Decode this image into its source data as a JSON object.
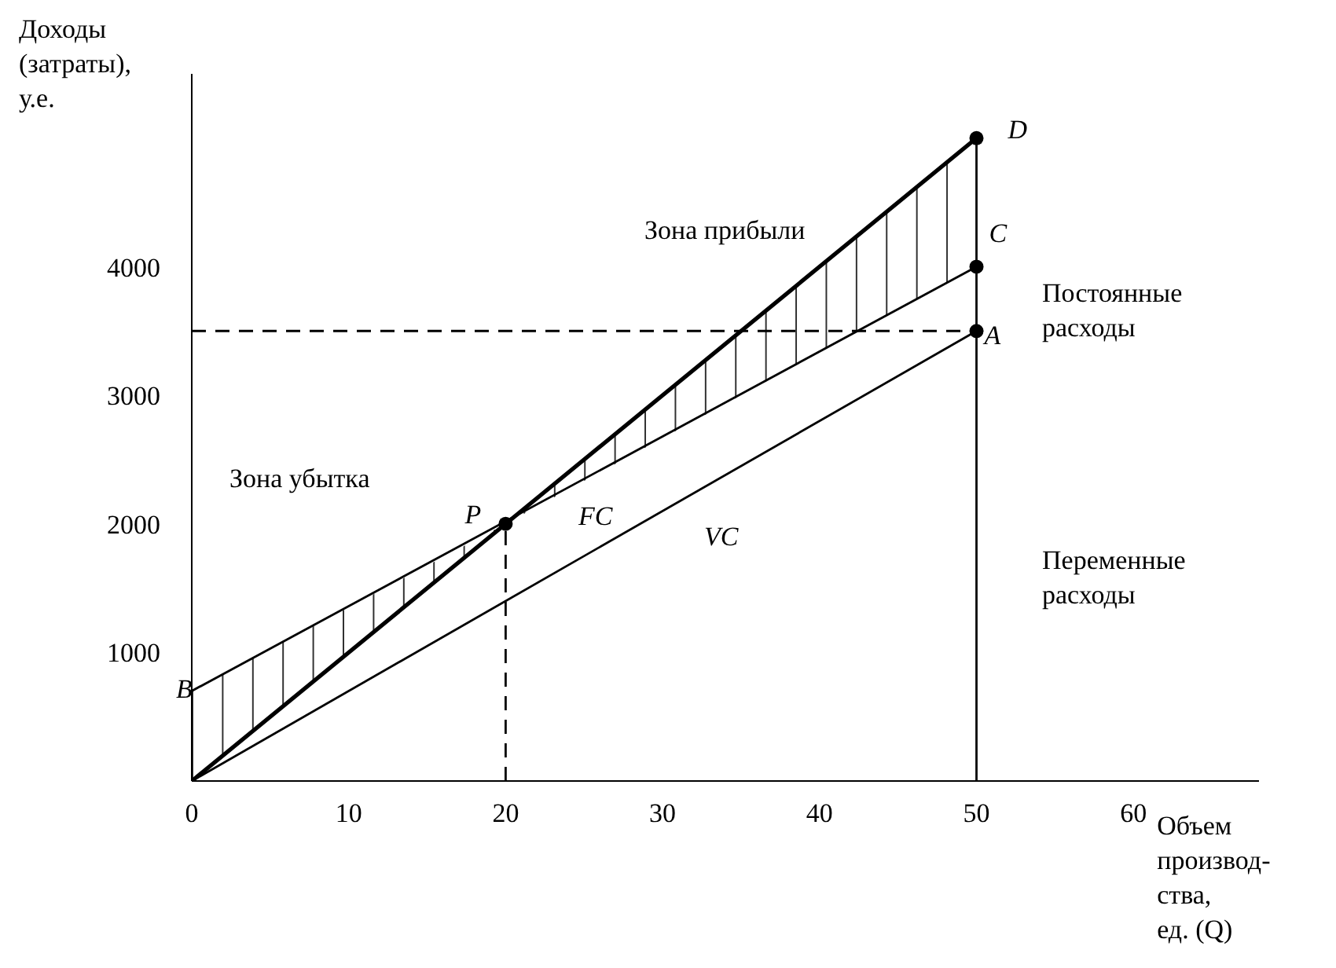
{
  "chart_data": {
    "type": "line",
    "xlabel": "Объем\nпроизвод-\nства,\nед. (Q)",
    "ylabel": "Доходы\n(затраты),\nу.е.",
    "xlim": [
      0,
      68
    ],
    "xticks": [
      0,
      10,
      20,
      30,
      40,
      50,
      60
    ],
    "ylim": [
      0,
      5500
    ],
    "yticks": [
      1000,
      2000,
      3000,
      4000
    ],
    "grid": false,
    "marker": "none",
    "line_style": "solid",
    "series": [
      {
        "color": "#000000",
        "x": [
          0,
          20,
          50
        ],
        "values": [
          0,
          2000,
          5000
        ],
        "lower": [
          0,
          2000,
          4000
        ],
        "upper": [
          700,
          2000,
          5000
        ]
      },
      {
        "color": "#000000",
        "x": [
          0,
          50
        ],
        "values": [
          700,
          4000
        ]
      },
      {
        "color": "#000000",
        "x": [
          0,
          50
        ],
        "values": [
          0,
          3500
        ]
      },
      {
        "color": "#000000",
        "x": [
          20,
          20
        ],
        "values": [
          0,
          2000
        ],
        "line_style": "dashed"
      },
      {
        "color": "#000000",
        "x": [
          0,
          50
        ],
        "values": [
          3500,
          3500
        ],
        "line_style": "dashed"
      },
      {
        "color": "#000000",
        "x": [
          50,
          50
        ],
        "values": [
          0,
          5000
        ]
      },
      {
        "type": "scatter",
        "marker": "circle",
        "color": "#000000",
        "x": [
          20,
          50,
          50,
          50
        ],
        "values": [
          2000,
          5000,
          4000,
          3500
        ]
      }
    ],
    "annotations": [
      {
        "text": "P",
        "x": 20,
        "y": 2000
      },
      {
        "text": "D",
        "x": 50,
        "y": 5000
      },
      {
        "text": "C",
        "x": 50,
        "y": 4000
      },
      {
        "text": "A",
        "x": 50,
        "y": 3500
      },
      {
        "text": "B",
        "x": 0,
        "y": 700
      },
      "FC",
      "VC",
      "Зона прибыли",
      "Зона убытка",
      "Постоянные\nрасходы",
      "Переменные\nрасходы"
    ]
  }
}
